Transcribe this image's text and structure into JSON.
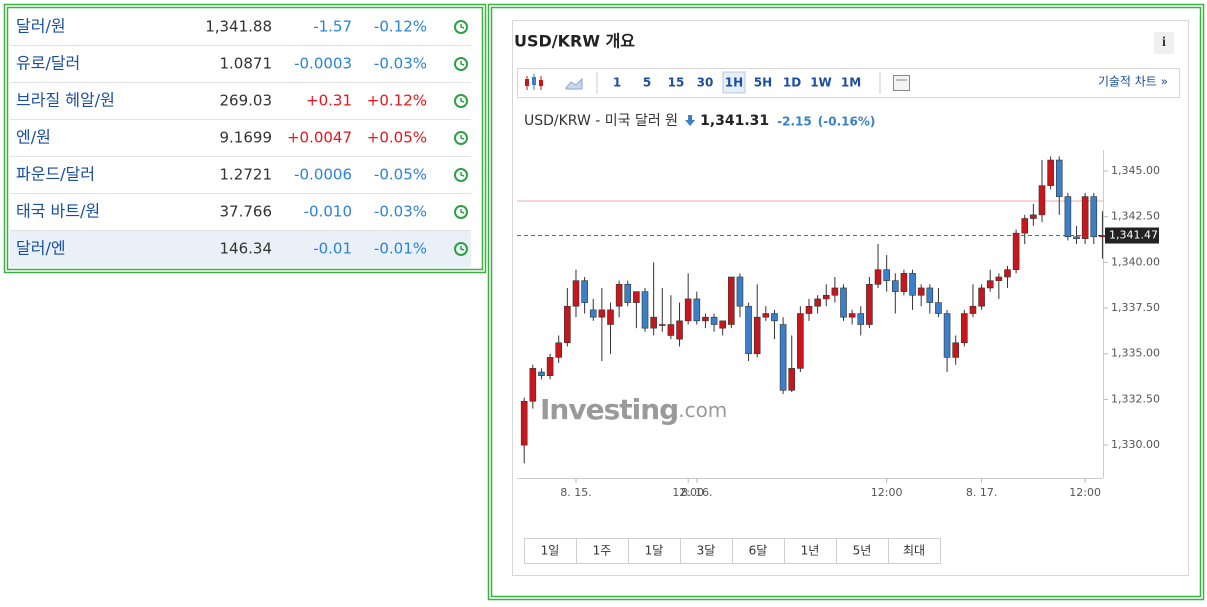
{
  "table": {
    "rows": [
      {
        "name": "달러/원",
        "price": "1,341.88",
        "change": "-1.57",
        "change_pct": "-0.12%"
      },
      {
        "name": "유로/달러",
        "price": "1.0871",
        "change": "-0.0003",
        "change_pct": "-0.03%"
      },
      {
        "name": "브라질 헤알/원",
        "price": "269.03",
        "change": "+0.31",
        "change_pct": "+0.12%"
      },
      {
        "name": "엔/원",
        "price": "9.1699",
        "change": "+0.0047",
        "change_pct": "+0.05%"
      },
      {
        "name": "파운드/달러",
        "price": "1.2721",
        "change": "-0.0006",
        "change_pct": "-0.05%"
      },
      {
        "name": "태국 바트/원",
        "price": "37.766",
        "change": "-0.010",
        "change_pct": "-0.03%"
      },
      {
        "name": "달러/엔",
        "price": "146.34",
        "change": "-0.01",
        "change_pct": "-0.01%"
      }
    ],
    "selected_row": 6
  },
  "panel": {
    "title": "USD/KRW 개요",
    "info": "i",
    "toolbar": [
      "1",
      "5",
      "15",
      "30",
      "1H",
      "5H",
      "1D",
      "1W",
      "1M"
    ],
    "toolbar_active": 4,
    "tech_link": "기술적 차트 »",
    "ranges": [
      "1일",
      "1주",
      "1달",
      "3달",
      "6달",
      "1년",
      "5년",
      "최대"
    ]
  },
  "chart_data": {
    "type": "candlestick",
    "symbol_label": "USD/KRW - 미국 달러 원",
    "price": "1,341.31",
    "change": "-2.15",
    "change_pct": "(-0.16%)",
    "watermark": [
      "Investing",
      ".com"
    ],
    "categories": [
      null,
      null,
      null,
      null,
      null,
      null,
      "8. 15.",
      null,
      null,
      null,
      null,
      null,
      null,
      null,
      null,
      null,
      null,
      null,
      null,
      "12:00",
      "8. 16.",
      null,
      null,
      null,
      null,
      null,
      null,
      null,
      null,
      null,
      null,
      null,
      null,
      null,
      null,
      null,
      null,
      null,
      null,
      null,
      null,
      null,
      "12:00",
      null,
      null,
      null,
      null,
      null,
      null,
      null,
      null,
      null,
      null,
      "8. 17.",
      null,
      null,
      null,
      null,
      null,
      null,
      null,
      null,
      null,
      null,
      null,
      "12:00",
      null,
      null
    ],
    "open": [
      1330.0,
      1332.4,
      1334.0,
      1333.8,
      1334.8,
      1335.6,
      1337.6,
      1339.0,
      1337.4,
      1337.0,
      1336.6,
      1337.6,
      1338.8,
      1337.8,
      1338.4,
      1336.4,
      1336.6,
      1336.0,
      1335.8,
      1336.8,
      1338.0,
      1336.8,
      1337.0,
      1336.4,
      1336.6,
      1339.2,
      1337.6,
      1335.0,
      1337.0,
      1337.2,
      1336.6,
      1333.0,
      1334.2,
      1337.2,
      1337.6,
      1338.0,
      1338.2,
      1338.6,
      1337.0,
      1337.2,
      1336.6,
      1338.8,
      1339.6,
      1339.0,
      1338.4,
      1339.4,
      1338.2,
      1338.6,
      1337.8,
      1337.2,
      1334.8,
      1335.6,
      1337.2,
      1337.6,
      1338.6,
      1339.0,
      1339.2,
      1339.6,
      1341.6,
      1342.4,
      1342.6,
      1344.2,
      1345.6,
      1343.6,
      1341.4,
      1341.3,
      1343.6,
      1341.4
    ],
    "high": [
      1332.6,
      1334.4,
      1334.2,
      1335.0,
      1336.0,
      1338.6,
      1339.6,
      1339.2,
      1338.0,
      1338.6,
      1337.8,
      1339.0,
      1339.0,
      1338.4,
      1338.6,
      1340.0,
      1338.6,
      1338.2,
      1337.8,
      1339.4,
      1338.4,
      1337.2,
      1337.2,
      1336.8,
      1339.2,
      1339.4,
      1337.8,
      1338.8,
      1337.6,
      1337.4,
      1337.0,
      1336.0,
      1337.6,
      1338.0,
      1338.2,
      1338.8,
      1339.2,
      1338.8,
      1337.4,
      1337.6,
      1339.2,
      1341.0,
      1340.4,
      1339.4,
      1339.6,
      1339.6,
      1338.8,
      1338.8,
      1338.6,
      1337.4,
      1336.0,
      1337.4,
      1338.8,
      1338.8,
      1339.6,
      1339.4,
      1339.8,
      1341.8,
      1342.6,
      1343.2,
      1345.6,
      1345.8,
      1345.8,
      1343.8,
      1342.0,
      1343.8,
      1343.8,
      1342.8
    ],
    "low": [
      1329.0,
      1332.0,
      1333.6,
      1333.6,
      1334.5,
      1335.4,
      1337.0,
      1337.2,
      1336.8,
      1334.6,
      1335.0,
      1337.0,
      1337.6,
      1336.4,
      1336.2,
      1336.0,
      1336.2,
      1335.8,
      1335.4,
      1336.6,
      1336.6,
      1336.4,
      1336.2,
      1336.0,
      1336.4,
      1337.0,
      1334.6,
      1334.8,
      1336.8,
      1335.8,
      1332.8,
      1332.9,
      1334.0,
      1336.8,
      1337.2,
      1337.6,
      1337.8,
      1336.8,
      1336.6,
      1336.0,
      1336.4,
      1338.6,
      1338.4,
      1337.2,
      1338.2,
      1337.4,
      1337.6,
      1337.2,
      1337.0,
      1334.0,
      1334.4,
      1335.4,
      1337.0,
      1337.4,
      1338.4,
      1338.0,
      1338.6,
      1339.4,
      1341.0,
      1342.0,
      1342.2,
      1344.0,
      1342.6,
      1341.2,
      1341.0,
      1341.0,
      1341.0,
      1340.2
    ],
    "close": [
      1332.4,
      1334.2,
      1333.8,
      1334.8,
      1335.6,
      1337.6,
      1339.0,
      1337.8,
      1337.0,
      1337.4,
      1337.4,
      1338.8,
      1337.8,
      1338.4,
      1336.4,
      1337.0,
      1336.6,
      1336.6,
      1336.8,
      1338.0,
      1336.8,
      1337.0,
      1336.6,
      1336.8,
      1339.2,
      1337.6,
      1335.0,
      1337.0,
      1337.2,
      1336.8,
      1333.0,
      1334.2,
      1337.2,
      1337.6,
      1338.0,
      1338.2,
      1338.6,
      1337.0,
      1337.2,
      1336.6,
      1338.8,
      1339.6,
      1339.0,
      1338.4,
      1339.4,
      1338.2,
      1338.6,
      1337.8,
      1337.2,
      1334.8,
      1335.6,
      1337.2,
      1337.6,
      1338.6,
      1339.0,
      1339.2,
      1339.6,
      1341.6,
      1342.4,
      1342.6,
      1344.2,
      1345.6,
      1343.6,
      1341.4,
      1341.3,
      1343.6,
      1341.4,
      1341.47
    ],
    "up_color": "#c8161d",
    "down_color": "#3a7fc8",
    "ylim": [
      1328.2,
      1346.15
    ],
    "yticks": [
      {
        "value": 1330,
        "label": "1,330.00"
      },
      {
        "value": 1332.5,
        "label": "1,332.50"
      },
      {
        "value": 1335,
        "label": "1,335.00"
      },
      {
        "value": 1337.5,
        "label": "1,337.50"
      },
      {
        "value": 1340,
        "label": "1,340.00"
      },
      {
        "value": 1342.5,
        "label": "1,342.50"
      },
      {
        "value": 1345,
        "label": "1,345.00"
      }
    ],
    "last_price": {
      "value": 1341.47,
      "label": "1,341.47"
    },
    "reference_line": 1343.36
  }
}
